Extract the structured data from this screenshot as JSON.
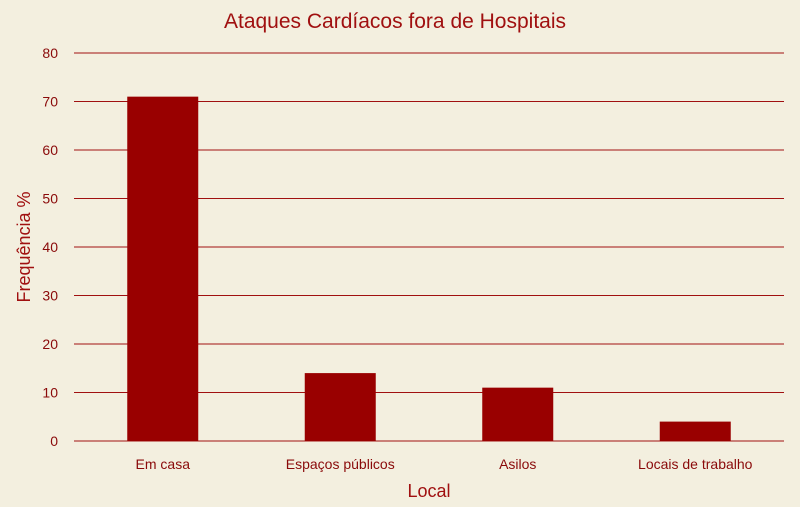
{
  "chart_data": {
    "type": "bar",
    "title": "Ataques Cardíacos fora de Hospitais",
    "xlabel": "Local",
    "ylabel": "Frequência %",
    "categories": [
      "Em casa",
      "Espaços públicos",
      "Asilos",
      "Locais de trabalho"
    ],
    "values": [
      71,
      14,
      11,
      4
    ],
    "ylim": [
      0,
      80
    ],
    "yticks": [
      "0",
      "10",
      "20",
      "30",
      "40",
      "50",
      "60",
      "70",
      "80"
    ],
    "grid": true,
    "legend": "none"
  },
  "colors": {
    "background": "#f3efdf",
    "bar": "#990000",
    "text": "#a01010",
    "grid": "#a01010"
  }
}
